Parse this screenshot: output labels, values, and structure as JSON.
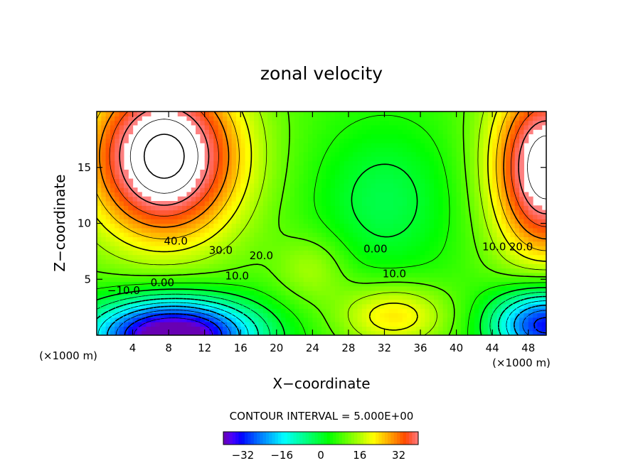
{
  "chart_data": {
    "type": "heatmap",
    "title": "zonal velocity",
    "xlabel": "X−coordinate",
    "ylabel": "Z−coordinate",
    "x_unit": "(×1000 m)",
    "x_unit_right": "(×1000 m)",
    "xlim": [
      0,
      50
    ],
    "ylim": [
      0,
      20
    ],
    "x_ticks": [
      4,
      8,
      12,
      16,
      20,
      24,
      28,
      32,
      36,
      40,
      44,
      48
    ],
    "y_ticks": [
      5,
      10,
      15
    ],
    "contour_interval_text": "CONTOUR INTERVAL = 5.000E+00",
    "contour_labels": [
      {
        "text": "40.0",
        "x": 8.8,
        "y": 8.4
      },
      {
        "text": "30.0",
        "x": 13.8,
        "y": 7.6
      },
      {
        "text": "20.0",
        "x": 18.3,
        "y": 7.1
      },
      {
        "text": "10.0",
        "x": 15.6,
        "y": 5.3
      },
      {
        "text": "0.00",
        "x": 7.3,
        "y": 4.7
      },
      {
        "text": "−10.0",
        "x": 3.0,
        "y": 4.0
      },
      {
        "text": "0.00",
        "x": 31.0,
        "y": 7.7
      },
      {
        "text": "10.0",
        "x": 33.1,
        "y": 5.5
      },
      {
        "text": "10.0",
        "x": 44.2,
        "y": 7.9
      },
      {
        "text": "20.0",
        "x": 47.2,
        "y": 7.9
      }
    ],
    "colorbar": {
      "range": [
        -40,
        40
      ],
      "ticks": [
        "−32",
        "−16",
        "0",
        "16",
        "32"
      ],
      "tick_values": [
        -32,
        -16,
        0,
        16,
        32
      ]
    },
    "colors": {
      "very_negative": "#4b0082",
      "negative": "#0000ff",
      "near_zero": "#00d060",
      "positive": "#ffff00",
      "very_positive": "#ff0000",
      "max": "#ffb0b0"
    }
  }
}
